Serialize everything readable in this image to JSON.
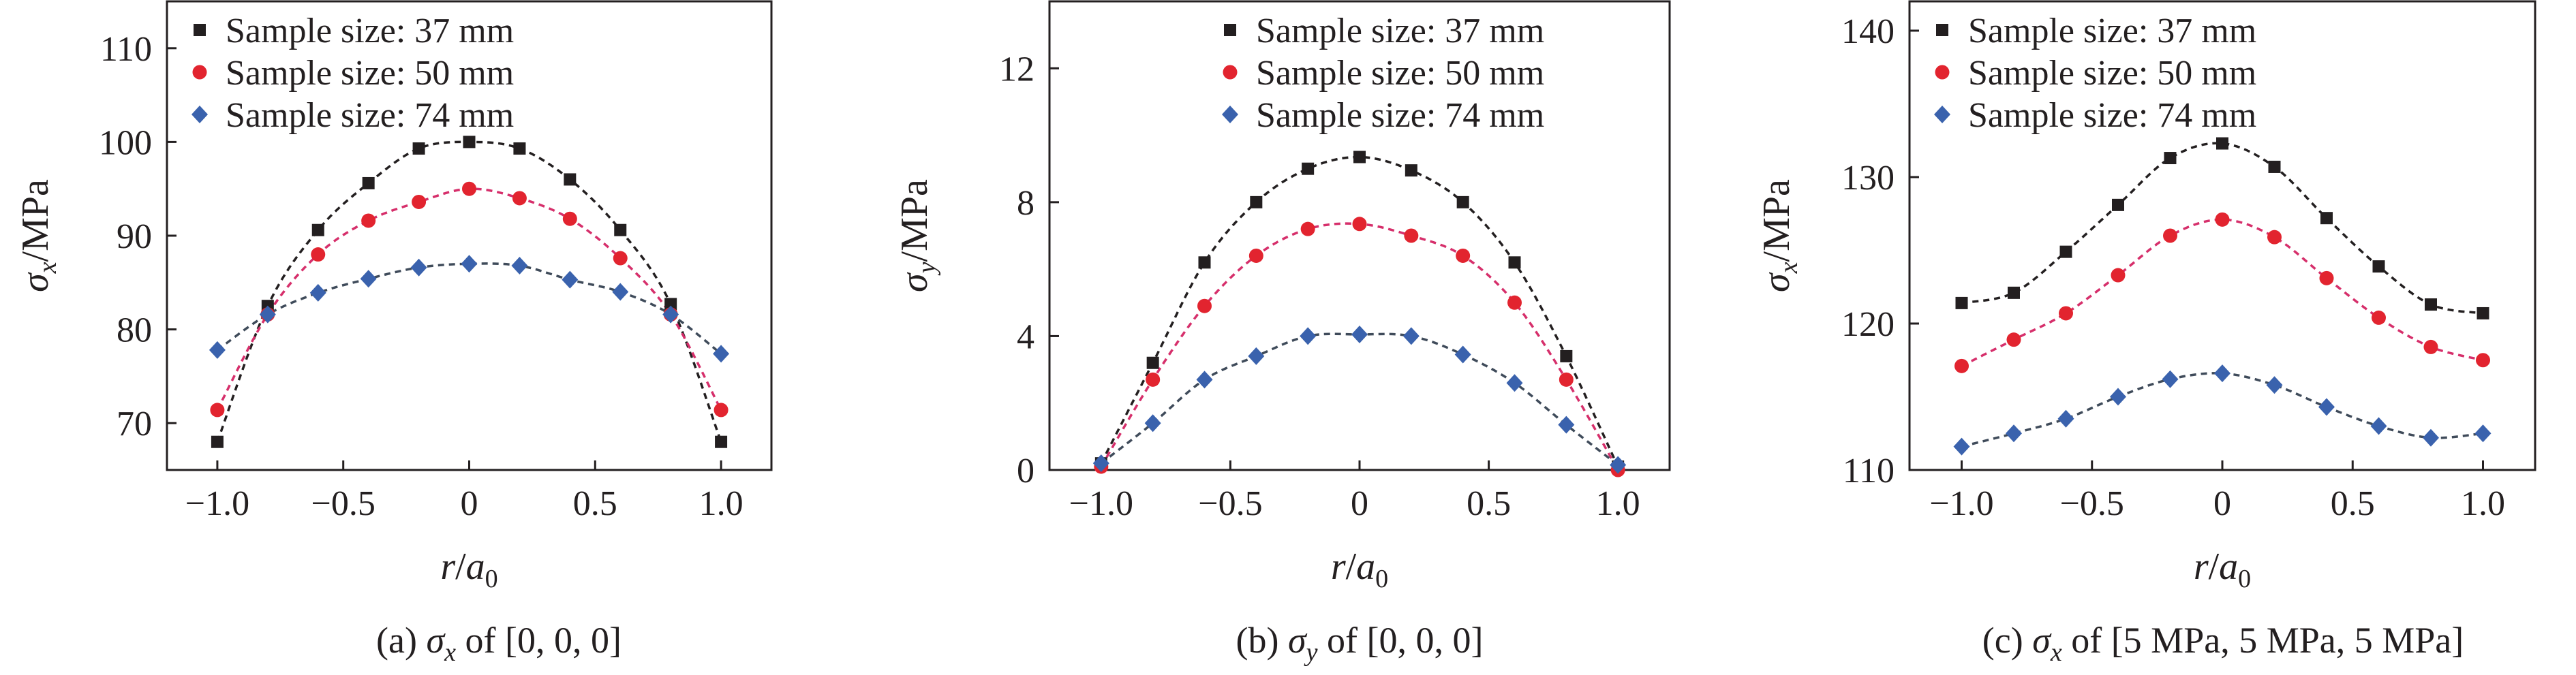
{
  "colors": {
    "axis": "#231f20",
    "s37": "#231f20",
    "s50": "#e2242f",
    "s74": "#3a62ad",
    "fit37": "#231f20",
    "fit50": "#d62f6b",
    "fit74": "#3f4b5a"
  },
  "chart_data": [
    {
      "type": "scatter",
      "caption": {
        "pre": "(a) ",
        "sym": "σ",
        "sub": "x",
        "post": " of [0, 0, 0]"
      },
      "xlabel": {
        "sym": "r",
        "mid": "/",
        "sym2": "a",
        "sub2": "0"
      },
      "ylabel": {
        "sym": "σ",
        "sub": "x",
        "post": "/MPa"
      },
      "xlim": [
        -1.2,
        1.2
      ],
      "ylim": [
        65,
        115
      ],
      "xticks": [
        -1.0,
        -0.5,
        0,
        0.5,
        1.0
      ],
      "xtick_labels": [
        "−1.0",
        "−0.5",
        "0",
        "0.5",
        "1.0"
      ],
      "yticks": [
        70,
        80,
        90,
        100,
        110
      ],
      "ytick_labels": [
        "70",
        "80",
        "90",
        "100",
        "110"
      ],
      "legend": {
        "placement": "top-left"
      },
      "x": [
        -1.0,
        -0.8,
        -0.6,
        -0.4,
        -0.2,
        0,
        0.2,
        0.4,
        0.6,
        0.8,
        1.0
      ],
      "series": [
        {
          "name": "Sample size: 37 mm",
          "marker": "square",
          "color_key": "s37",
          "fit_color_key": "fit37",
          "values": [
            68.0,
            82.5,
            90.6,
            95.6,
            99.3,
            100.0,
            99.3,
            96.0,
            90.6,
            82.7,
            68.0
          ]
        },
        {
          "name": "Sample size: 50 mm",
          "marker": "circle",
          "color_key": "s50",
          "fit_color_key": "fit50",
          "values": [
            71.4,
            81.6,
            88.0,
            91.6,
            93.6,
            95.0,
            94.0,
            91.8,
            87.6,
            81.6,
            71.4
          ]
        },
        {
          "name": "Sample size: 74 mm",
          "marker": "diamond",
          "color_key": "s74",
          "fit_color_key": "fit74",
          "values": [
            77.8,
            81.6,
            83.9,
            85.4,
            86.6,
            87.0,
            86.8,
            85.3,
            84.0,
            81.6,
            77.4
          ]
        }
      ]
    },
    {
      "type": "scatter",
      "caption": {
        "pre": "(b) ",
        "sym": "σ",
        "sub": "y",
        "post": " of [0, 0, 0]"
      },
      "xlabel": {
        "sym": "r",
        "mid": "/",
        "sym2": "a",
        "sub2": "0"
      },
      "ylabel": {
        "sym": "σ",
        "sub": "y",
        "post": "/MPa"
      },
      "xlim": [
        -1.2,
        1.2
      ],
      "ylim": [
        0,
        14
      ],
      "xticks": [
        -1.0,
        -0.5,
        0,
        0.5,
        1.0
      ],
      "xtick_labels": [
        "−1.0",
        "−0.5",
        "0",
        "0.5",
        "1.0"
      ],
      "yticks": [
        0,
        4,
        8,
        12
      ],
      "ytick_labels": [
        "0",
        "4",
        "8",
        "12"
      ],
      "legend": {
        "placement": "top-right"
      },
      "x": [
        -1.0,
        -0.8,
        -0.6,
        -0.4,
        -0.2,
        0,
        0.2,
        0.4,
        0.6,
        0.8,
        1.0
      ],
      "series": [
        {
          "name": "Sample size: 37 mm",
          "marker": "square",
          "color_key": "s37",
          "fit_color_key": "fit37",
          "values": [
            0.2,
            3.2,
            6.2,
            8.0,
            9.0,
            9.35,
            8.95,
            8.0,
            6.2,
            3.4,
            0.1
          ]
        },
        {
          "name": "Sample size: 50 mm",
          "marker": "circle",
          "color_key": "s50",
          "fit_color_key": "fit50",
          "values": [
            0.1,
            2.7,
            4.9,
            6.4,
            7.2,
            7.35,
            7.0,
            6.4,
            5.0,
            2.7,
            0.0
          ]
        },
        {
          "name": "Sample size: 74 mm",
          "marker": "diamond",
          "color_key": "s74",
          "fit_color_key": "fit74",
          "values": [
            0.2,
            1.4,
            2.7,
            3.4,
            4.0,
            4.05,
            4.0,
            3.45,
            2.6,
            1.35,
            0.15
          ]
        }
      ]
    },
    {
      "type": "scatter",
      "caption": {
        "pre": "(c) ",
        "sym": "σ",
        "sub": "x",
        "post": " of [5 MPa, 5 MPa, 5 MPa]"
      },
      "xlabel": {
        "sym": "r",
        "mid": "/",
        "sym2": "a",
        "sub2": "0"
      },
      "ylabel": {
        "sym": "σ",
        "sub": "x",
        "post": "/MPa"
      },
      "xlim": [
        -1.2,
        1.2
      ],
      "ylim": [
        110,
        142
      ],
      "xticks": [
        -1.0,
        -0.5,
        0,
        0.5,
        1.0
      ],
      "xtick_labels": [
        "−1.0",
        "−0.5",
        "0",
        "0.5",
        "1.0"
      ],
      "yticks": [
        110,
        120,
        130,
        140
      ],
      "ytick_labels": [
        "110",
        "120",
        "130",
        "140"
      ],
      "legend": {
        "placement": "top-left"
      },
      "x": [
        -1.0,
        -0.8,
        -0.6,
        -0.4,
        -0.2,
        0,
        0.2,
        0.4,
        0.6,
        0.8,
        1.0
      ],
      "series": [
        {
          "name": "Sample size: 37 mm",
          "marker": "square",
          "color_key": "s37",
          "fit_color_key": "fit37",
          "values": [
            121.4,
            122.1,
            124.9,
            128.1,
            131.3,
            132.3,
            130.7,
            127.2,
            123.9,
            121.3,
            120.7
          ]
        },
        {
          "name": "Sample size: 50 mm",
          "marker": "circle",
          "color_key": "s50",
          "fit_color_key": "fit50",
          "values": [
            117.1,
            118.9,
            120.7,
            123.3,
            126.0,
            127.1,
            125.9,
            123.1,
            120.4,
            118.4,
            117.5
          ]
        },
        {
          "name": "Sample size: 74 mm",
          "marker": "diamond",
          "color_key": "s74",
          "fit_color_key": "fit74",
          "values": [
            111.6,
            112.5,
            113.5,
            115.0,
            116.2,
            116.6,
            115.8,
            114.3,
            113.0,
            112.2,
            112.5
          ]
        }
      ]
    }
  ]
}
